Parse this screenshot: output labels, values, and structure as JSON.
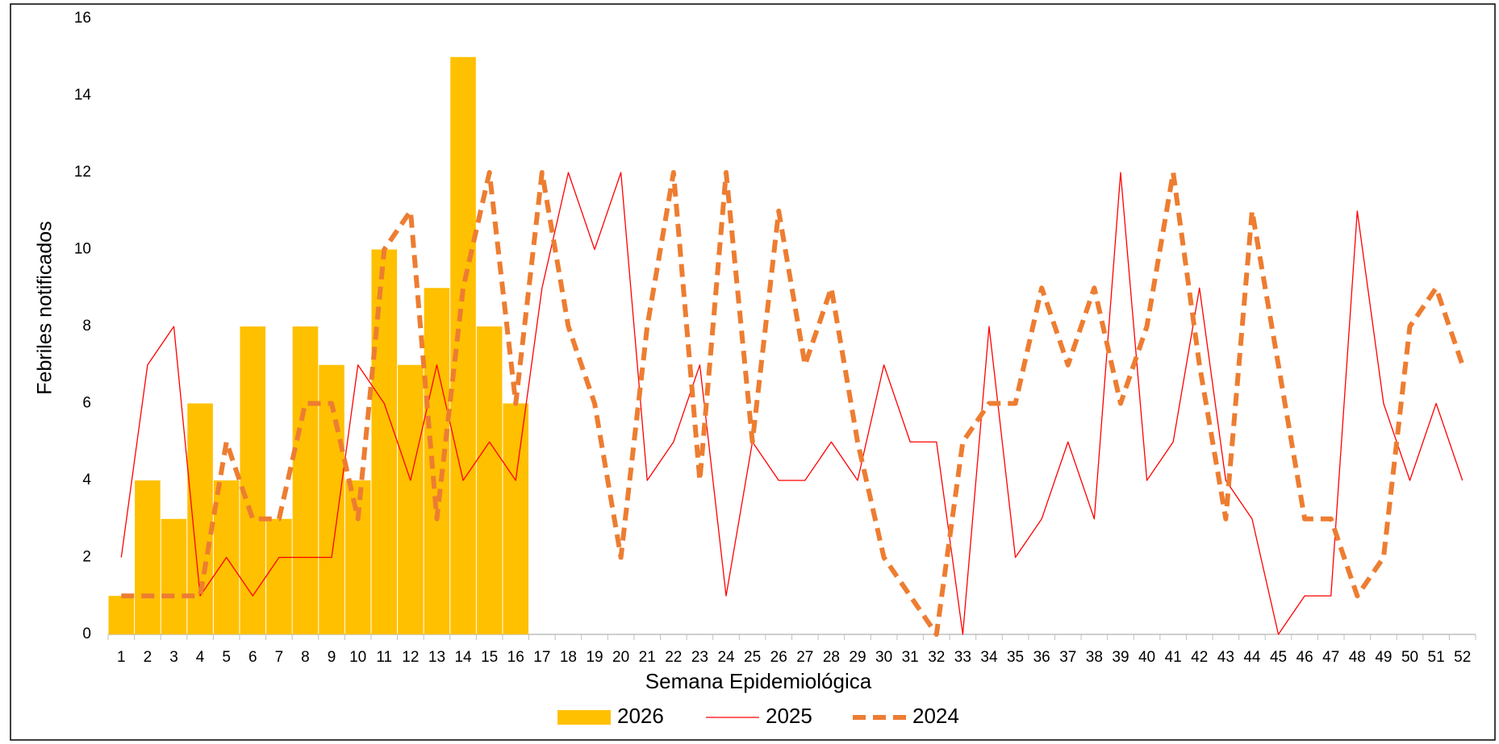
{
  "chart_data": {
    "type": "combo",
    "x_label": "Semana Epidemiológica",
    "y_label": "Febriles notificados",
    "categories": [
      "1",
      "2",
      "3",
      "4",
      "5",
      "6",
      "7",
      "8",
      "9",
      "10",
      "11",
      "12",
      "13",
      "14",
      "15",
      "16",
      "17",
      "18",
      "19",
      "20",
      "21",
      "22",
      "23",
      "24",
      "25",
      "26",
      "27",
      "28",
      "29",
      "30",
      "31",
      "32",
      "33",
      "34",
      "35",
      "36",
      "37",
      "38",
      "39",
      "40",
      "41",
      "42",
      "43",
      "44",
      "45",
      "46",
      "47",
      "48",
      "49",
      "50",
      "51",
      "52"
    ],
    "ylim": [
      0,
      16
    ],
    "yticks": [
      0,
      2,
      4,
      6,
      8,
      10,
      12,
      14,
      16
    ],
    "series": [
      {
        "name": "2026",
        "type": "bar",
        "color": "#ffc000",
        "values": [
          1,
          4,
          3,
          6,
          4,
          8,
          3,
          8,
          7,
          4,
          10,
          7,
          9,
          15,
          8,
          6,
          null,
          null,
          null,
          null,
          null,
          null,
          null,
          null,
          null,
          null,
          null,
          null,
          null,
          null,
          null,
          null,
          null,
          null,
          null,
          null,
          null,
          null,
          null,
          null,
          null,
          null,
          null,
          null,
          null,
          null,
          null,
          null,
          null,
          null,
          null,
          null
        ]
      },
      {
        "name": "2025",
        "type": "line",
        "color": "#ff0000",
        "values": [
          2,
          7,
          8,
          1,
          2,
          1,
          2,
          2,
          2,
          7,
          6,
          4,
          7,
          4,
          5,
          4,
          9,
          12,
          10,
          12,
          4,
          5,
          7,
          1,
          5,
          4,
          4,
          5,
          4,
          7,
          5,
          5,
          0,
          8,
          2,
          3,
          5,
          3,
          12,
          4,
          5,
          9,
          4,
          3,
          0,
          1,
          1,
          11,
          6,
          4,
          6,
          4
        ]
      },
      {
        "name": "2024",
        "type": "dashed-line",
        "color": "#ed7d31",
        "values": [
          1,
          1,
          1,
          1,
          5,
          3,
          3,
          6,
          6,
          3,
          10,
          11,
          3,
          9,
          12,
          6,
          12,
          8,
          6,
          2,
          8,
          12,
          4,
          12,
          5,
          11,
          7,
          9,
          5,
          2,
          1,
          0,
          5,
          6,
          6,
          9,
          7,
          9,
          6,
          8,
          12,
          7,
          3,
          11,
          7,
          3,
          3,
          1,
          2,
          8,
          9,
          7
        ]
      }
    ]
  }
}
